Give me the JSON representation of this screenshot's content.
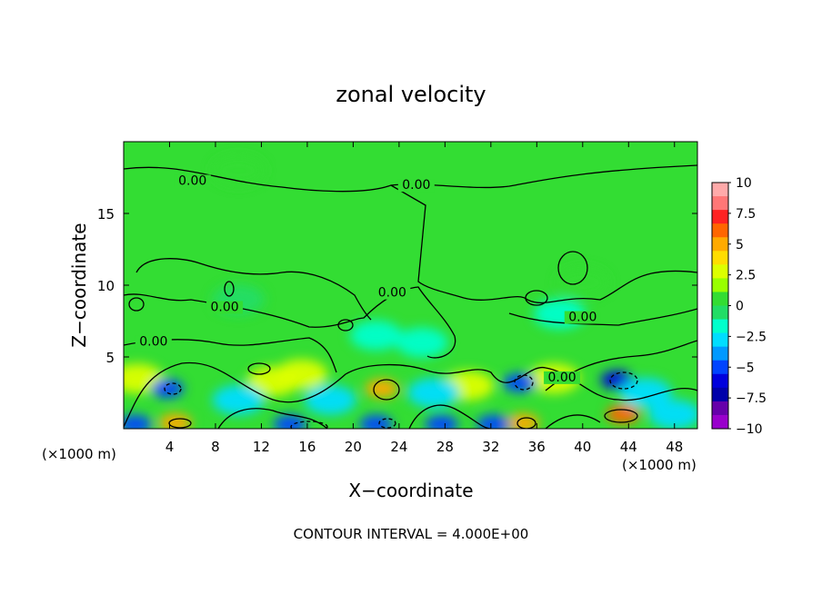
{
  "chart_data": {
    "type": "heatmap",
    "title": "zonal velocity",
    "xlabel": "X−coordinate",
    "ylabel": "Z−coordinate",
    "x_unit_left": "(×1000 m)",
    "x_unit_right": "(×1000 m)",
    "footer": "CONTOUR INTERVAL = 4.000E+00",
    "xlim": [
      0,
      50
    ],
    "ylim": [
      0,
      20
    ],
    "xticks": [
      {
        "value": 4,
        "label": "4"
      },
      {
        "value": 8,
        "label": "8"
      },
      {
        "value": 12,
        "label": "12"
      },
      {
        "value": 16,
        "label": "16"
      },
      {
        "value": 20,
        "label": "20"
      },
      {
        "value": 24,
        "label": "24"
      },
      {
        "value": 28,
        "label": "28"
      },
      {
        "value": 32,
        "label": "32"
      },
      {
        "value": 36,
        "label": "36"
      },
      {
        "value": 40,
        "label": "40"
      },
      {
        "value": 44,
        "label": "44"
      },
      {
        "value": 48,
        "label": "48"
      }
    ],
    "yticks": [
      {
        "value": 5,
        "label": "5"
      },
      {
        "value": 10,
        "label": "10"
      },
      {
        "value": 15,
        "label": "15"
      }
    ],
    "colorbar": {
      "range": [
        -10,
        10
      ],
      "levels": [
        {
          "value": 10,
          "label": "10"
        },
        {
          "value": 7.5,
          "label": "7.5"
        },
        {
          "value": 5,
          "label": "5"
        },
        {
          "value": 2.5,
          "label": "2.5"
        },
        {
          "value": 0,
          "label": "0"
        },
        {
          "value": -2.5,
          "label": "−2.5"
        },
        {
          "value": -5,
          "label": "−5"
        },
        {
          "value": -7.5,
          "label": "−7.5"
        },
        {
          "value": -10,
          "label": "−10"
        }
      ],
      "colors": [
        "#ffaaaa",
        "#ff7777",
        "#ff2222",
        "#ff6600",
        "#ffaa00",
        "#ffdd00",
        "#ddff00",
        "#99ff00",
        "#33dd33",
        "#22dd66",
        "#00ffcc",
        "#00ddff",
        "#0099ff",
        "#0044ff",
        "#0000dd",
        "#0000aa",
        "#6600aa",
        "#9900cc"
      ]
    },
    "contour_labels": [
      {
        "x": 6,
        "y": 17,
        "label": "0.00"
      },
      {
        "x": 25.5,
        "y": 16.7,
        "label": "0.00"
      },
      {
        "x": 8.8,
        "y": 8.2,
        "label": "0.00"
      },
      {
        "x": 2.6,
        "y": 5.8,
        "label": "0.00"
      },
      {
        "x": 23.4,
        "y": 9.2,
        "label": "0.00"
      },
      {
        "x": 40,
        "y": 7.5,
        "label": "0.00"
      },
      {
        "x": 38.2,
        "y": 3.3,
        "label": "0.00"
      }
    ],
    "features": [
      {
        "x": 22.5,
        "y": 2.8,
        "value": 5.5
      },
      {
        "x": 43.5,
        "y": 1.0,
        "value": 6.0
      },
      {
        "x": 4.5,
        "y": 0.4,
        "value": 5.0
      },
      {
        "x": 34.8,
        "y": 0.4,
        "value": 5.0
      },
      {
        "x": 1.2,
        "y": 3.5,
        "value": 3.0
      },
      {
        "x": 13,
        "y": 3.3,
        "value": 2.5
      },
      {
        "x": 15.5,
        "y": 3.8,
        "value": 3.0
      },
      {
        "x": 30,
        "y": 3.0,
        "value": 2.5
      },
      {
        "x": 37.5,
        "y": 3.5,
        "value": 2.5
      },
      {
        "x": 43,
        "y": 3.4,
        "value": -6.0
      },
      {
        "x": 34.5,
        "y": 3.2,
        "value": -5.5
      },
      {
        "x": 3.8,
        "y": 2.8,
        "value": -4.5
      },
      {
        "x": 22,
        "y": 0.3,
        "value": -5.0
      },
      {
        "x": 14.5,
        "y": 0.3,
        "value": -5.5
      },
      {
        "x": 1,
        "y": 0.3,
        "value": -5.0
      },
      {
        "x": 27.7,
        "y": 0.3,
        "value": -5.0
      },
      {
        "x": 32.2,
        "y": 0.3,
        "value": -4.5
      },
      {
        "x": 10,
        "y": 2.0,
        "value": -3.0
      },
      {
        "x": 18,
        "y": 2.0,
        "value": -3.0
      },
      {
        "x": 27,
        "y": 2.5,
        "value": -2.5
      },
      {
        "x": 45.5,
        "y": 2.5,
        "value": -2.5
      },
      {
        "x": 48,
        "y": 1.0,
        "value": -3.0
      },
      {
        "x": 22,
        "y": 6.5,
        "value": -1.5
      },
      {
        "x": 26,
        "y": 6.0,
        "value": -1.5
      },
      {
        "x": 10,
        "y": 9.0,
        "value": -1.0
      },
      {
        "x": 38,
        "y": 8.0,
        "value": -1.2
      },
      {
        "x": 40,
        "y": 10.2,
        "value": 0.5
      },
      {
        "x": 10,
        "y": 18,
        "value": 0.3
      }
    ]
  }
}
